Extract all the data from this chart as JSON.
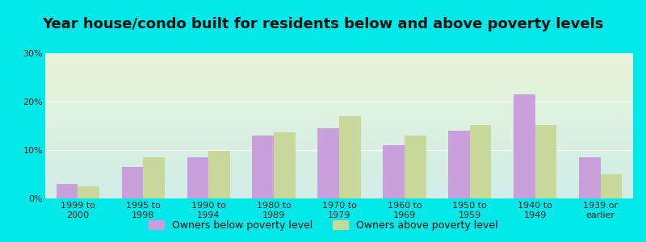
{
  "title": "Year house/condo built for residents below and above poverty levels",
  "categories": [
    "1999 to\n2000",
    "1995 to\n1998",
    "1990 to\n1994",
    "1980 to\n1989",
    "1970 to\n1979",
    "1960 to\n1969",
    "1950 to\n1959",
    "1940 to\n1949",
    "1939 or\nearlier"
  ],
  "below_poverty": [
    3.0,
    6.5,
    8.5,
    13.0,
    14.5,
    11.0,
    14.0,
    21.5,
    8.5
  ],
  "above_poverty": [
    2.5,
    8.5,
    9.8,
    13.7,
    17.0,
    13.0,
    15.2,
    15.2,
    5.0
  ],
  "below_color": "#c9a0dc",
  "above_color": "#c8d89a",
  "outer_bg": "#00e8e8",
  "grad_top": "#e8f5d8",
  "grad_bottom": "#d0ede8",
  "ylim": [
    0,
    30
  ],
  "yticks": [
    0,
    10,
    20,
    30
  ],
  "legend_below": "Owners below poverty level",
  "legend_above": "Owners above poverty level",
  "title_fontsize": 13,
  "tick_fontsize": 8,
  "legend_fontsize": 9
}
